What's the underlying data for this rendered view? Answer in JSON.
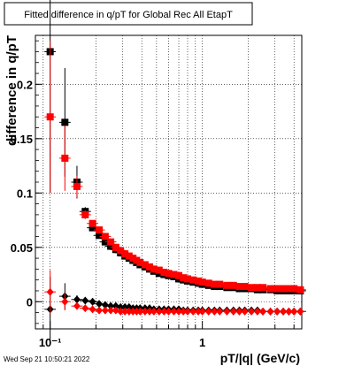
{
  "chart_data": {
    "type": "scatter",
    "title": "Fitted difference in q/pT for Global Rec All EtapT",
    "xlabel": "pT/|q| (GeV/c)",
    "ylabel": "difference in q/pT",
    "xscale": "log",
    "xlim": [
      0.08,
      4.5
    ],
    "ylim": [
      -0.025,
      0.245
    ],
    "yticks": [
      0,
      0.05,
      0.1,
      0.15,
      0.2
    ],
    "ytick_labels": [
      "0",
      "0.05",
      "0.1",
      "0.15",
      "0.2"
    ],
    "xticks": [
      0.1,
      1
    ],
    "xtick_labels": [
      "10⁻¹",
      "1"
    ],
    "grid": true,
    "timestamp": "Wed Sep 21 10:50:21 2022",
    "series": [
      {
        "marker": "square",
        "color": "#000000",
        "x": [
          0.1,
          0.125,
          0.15,
          0.17,
          0.19,
          0.21,
          0.23,
          0.25,
          0.27,
          0.29,
          0.31,
          0.33,
          0.35,
          0.37,
          0.39,
          0.42,
          0.45,
          0.48,
          0.52,
          0.56,
          0.6,
          0.65,
          0.7,
          0.75,
          0.8,
          0.87,
          0.94,
          1.0,
          1.1,
          1.2,
          1.3,
          1.45,
          1.6,
          1.75,
          1.9,
          2.1,
          2.3,
          2.5,
          2.8,
          3.1,
          3.4,
          3.7,
          4.0,
          4.4
        ],
        "y": [
          0.23,
          0.165,
          0.11,
          0.083,
          0.068,
          0.061,
          0.055,
          0.051,
          0.048,
          0.045,
          0.042,
          0.04,
          0.038,
          0.036,
          0.034,
          0.032,
          0.03,
          0.028,
          0.026,
          0.025,
          0.024,
          0.023,
          0.021,
          0.02,
          0.019,
          0.018,
          0.017,
          0.016,
          0.015,
          0.014,
          0.014,
          0.013,
          0.013,
          0.012,
          0.012,
          0.012,
          0.011,
          0.011,
          0.011,
          0.01,
          0.01,
          0.01,
          0.01,
          0.01
        ],
        "yerr": [
          0.13,
          0.05,
          0.015,
          0.004,
          0.003,
          0.002,
          0.002,
          0.002,
          0.001,
          0.001,
          0.001,
          0.001,
          0.001,
          0.001,
          0.001,
          0.001,
          0.001,
          0.001,
          0.001,
          0.001,
          0.001,
          0.001,
          0.001,
          0.001,
          0.001,
          0.001,
          0.001,
          0.001,
          0.001,
          0.001,
          0.001,
          0.001,
          0.001,
          0.001,
          0.001,
          0.001,
          0.001,
          0.001,
          0.001,
          0.001,
          0.001,
          0.001,
          0.001,
          0.001
        ]
      },
      {
        "marker": "square",
        "color": "#ff0000",
        "x": [
          0.1,
          0.125,
          0.15,
          0.17,
          0.19,
          0.21,
          0.23,
          0.25,
          0.27,
          0.29,
          0.31,
          0.33,
          0.35,
          0.37,
          0.39,
          0.42,
          0.45,
          0.48,
          0.52,
          0.56,
          0.6,
          0.65,
          0.7,
          0.75,
          0.8,
          0.87,
          0.94,
          1.0,
          1.1,
          1.2,
          1.3,
          1.45,
          1.6,
          1.75,
          1.9,
          2.1,
          2.3,
          2.5,
          2.8,
          3.1,
          3.4,
          3.7,
          4.0,
          4.4
        ],
        "y": [
          0.17,
          0.132,
          0.106,
          0.08,
          0.072,
          0.066,
          0.06,
          0.055,
          0.05,
          0.047,
          0.044,
          0.042,
          0.04,
          0.038,
          0.036,
          0.034,
          0.032,
          0.03,
          0.029,
          0.027,
          0.026,
          0.025,
          0.024,
          0.022,
          0.021,
          0.02,
          0.019,
          0.018,
          0.017,
          0.016,
          0.016,
          0.015,
          0.015,
          0.014,
          0.014,
          0.013,
          0.013,
          0.013,
          0.012,
          0.012,
          0.012,
          0.012,
          0.012,
          0.011
        ],
        "yerr": [
          0.07,
          0.03,
          0.01,
          0.004,
          0.003,
          0.002,
          0.002,
          0.002,
          0.001,
          0.001,
          0.001,
          0.001,
          0.001,
          0.001,
          0.001,
          0.001,
          0.001,
          0.001,
          0.001,
          0.001,
          0.001,
          0.001,
          0.001,
          0.001,
          0.001,
          0.001,
          0.001,
          0.001,
          0.001,
          0.001,
          0.001,
          0.001,
          0.001,
          0.001,
          0.001,
          0.001,
          0.001,
          0.001,
          0.001,
          0.001,
          0.001,
          0.001,
          0.001,
          0.001
        ]
      },
      {
        "marker": "diamond",
        "color": "#000000",
        "x": [
          0.1,
          0.125,
          0.15,
          0.17,
          0.19,
          0.21,
          0.23,
          0.25,
          0.27,
          0.29,
          0.31,
          0.33,
          0.35,
          0.37,
          0.39,
          0.42,
          0.45,
          0.48,
          0.52,
          0.56,
          0.6,
          0.65,
          0.7,
          0.75,
          0.8,
          0.87,
          0.94,
          1.0,
          1.1,
          1.2,
          1.3,
          1.45,
          1.6,
          1.75,
          1.9,
          2.1,
          2.3,
          2.5,
          2.8,
          3.1,
          3.4,
          3.7,
          4.0,
          4.4
        ],
        "y": [
          -0.007,
          0.005,
          0.002,
          0.001,
          0.0,
          -0.002,
          -0.003,
          -0.004,
          -0.004,
          -0.005,
          -0.005,
          -0.005,
          -0.006,
          -0.006,
          -0.006,
          -0.006,
          -0.006,
          -0.007,
          -0.007,
          -0.007,
          -0.007,
          -0.007,
          -0.007,
          -0.008,
          -0.008,
          -0.008,
          -0.008,
          -0.008,
          -0.008,
          -0.008,
          -0.008,
          -0.008,
          -0.008,
          -0.008,
          -0.008,
          -0.008,
          -0.008,
          -0.009,
          -0.009,
          -0.009,
          -0.009,
          -0.009,
          -0.009,
          -0.009
        ],
        "yerr": [
          0.03,
          0.012,
          0.004,
          0.002,
          0.001,
          0.001,
          0.001,
          0.001,
          0.001,
          0.001,
          0.001,
          0.001,
          0.001,
          0.001,
          0.001,
          0.001,
          0.001,
          0.001,
          0.001,
          0.001,
          0.001,
          0.001,
          0.001,
          0.001,
          0.001,
          0.001,
          0.001,
          0.001,
          0.001,
          0.001,
          0.001,
          0.001,
          0.001,
          0.001,
          0.001,
          0.001,
          0.001,
          0.001,
          0.001,
          0.001,
          0.001,
          0.001,
          0.001,
          0.001
        ]
      },
      {
        "marker": "diamond",
        "color": "#ff0000",
        "x": [
          0.1,
          0.125,
          0.15,
          0.17,
          0.19,
          0.21,
          0.23,
          0.25,
          0.27,
          0.29,
          0.31,
          0.33,
          0.35,
          0.37,
          0.39,
          0.42,
          0.45,
          0.48,
          0.52,
          0.56,
          0.6,
          0.65,
          0.7,
          0.75,
          0.8,
          0.87,
          0.94,
          1.0,
          1.1,
          1.2,
          1.3,
          1.45,
          1.6,
          1.75,
          1.9,
          2.1,
          2.3,
          2.5,
          2.8,
          3.1,
          3.4,
          3.7,
          4.0,
          4.4
        ],
        "y": [
          0.009,
          0.0,
          -0.004,
          -0.006,
          -0.007,
          -0.008,
          -0.008,
          -0.008,
          -0.008,
          -0.009,
          -0.009,
          -0.009,
          -0.009,
          -0.009,
          -0.009,
          -0.009,
          -0.009,
          -0.009,
          -0.009,
          -0.009,
          -0.009,
          -0.009,
          -0.009,
          -0.009,
          -0.009,
          -0.009,
          -0.009,
          -0.009,
          -0.009,
          -0.009,
          -0.009,
          -0.009,
          -0.009,
          -0.009,
          -0.009,
          -0.009,
          -0.009,
          -0.009,
          -0.009,
          -0.009,
          -0.009,
          -0.009,
          -0.009,
          -0.009
        ],
        "yerr": [
          0.02,
          0.008,
          0.003,
          0.002,
          0.001,
          0.001,
          0.001,
          0.001,
          0.001,
          0.001,
          0.001,
          0.001,
          0.001,
          0.001,
          0.001,
          0.001,
          0.001,
          0.001,
          0.001,
          0.001,
          0.001,
          0.001,
          0.001,
          0.001,
          0.001,
          0.001,
          0.001,
          0.001,
          0.001,
          0.001,
          0.001,
          0.001,
          0.001,
          0.001,
          0.001,
          0.001,
          0.001,
          0.001,
          0.001,
          0.001,
          0.001,
          0.001,
          0.001,
          0.001
        ]
      }
    ]
  }
}
